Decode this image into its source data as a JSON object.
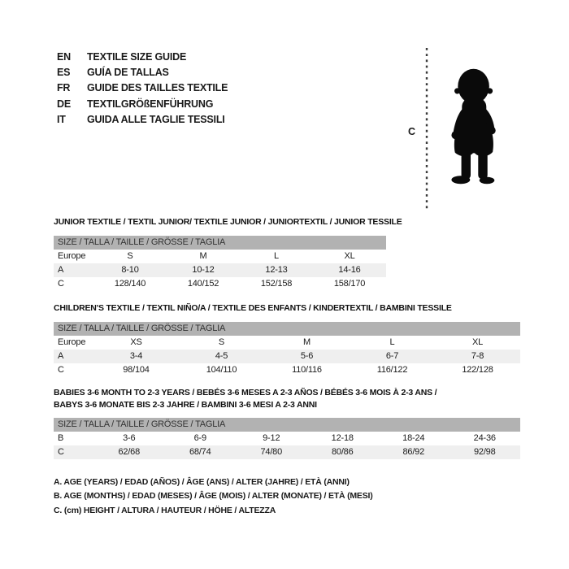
{
  "languages": [
    {
      "code": "EN",
      "label": "TEXTILE SIZE GUIDE"
    },
    {
      "code": "ES",
      "label": "GUÍA DE TALLAS"
    },
    {
      "code": "FR",
      "label": "GUIDE DES TAILLES TEXTILE"
    },
    {
      "code": "DE",
      "label": "TEXTILGRÖßENFÜHRUNG"
    },
    {
      "code": "IT",
      "label": "GUIDA ALLE TAGLIE TESSILI"
    }
  ],
  "figure": {
    "height_label": "C"
  },
  "sections": [
    {
      "title": "JUNIOR TEXTILE / TEXTIL JUNIOR/ TEXTILE JUNIOR / JUNIORTEXTIL / JUNIOR TESSILE",
      "table": {
        "header": "SIZE / TALLA / TAILLE / GRÖSSE / TAGLIA",
        "rows": [
          {
            "shaded": false,
            "cells": [
              "Europe",
              "S",
              "M",
              "L",
              "XL"
            ]
          },
          {
            "shaded": true,
            "cells": [
              "A",
              "8-10",
              "10-12",
              "12-13",
              "14-16"
            ]
          },
          {
            "shaded": false,
            "cells": [
              "C",
              "128/140",
              "140/152",
              "152/158",
              "158/170"
            ]
          }
        ]
      }
    },
    {
      "title": "CHILDREN'S TEXTILE / TEXTIL NIÑO/A / TEXTILE DES ENFANTS / KINDERTEXTIL / BAMBINI TESSILE",
      "table": {
        "header": "SIZE / TALLA / TAILLE / GRÖSSE / TAGLIA",
        "rows": [
          {
            "shaded": false,
            "cells": [
              "Europe",
              "XS",
              "S",
              "M",
              "L",
              "XL"
            ]
          },
          {
            "shaded": true,
            "cells": [
              "A",
              "3-4",
              "4-5",
              "5-6",
              "6-7",
              "7-8"
            ]
          },
          {
            "shaded": false,
            "cells": [
              "C",
              "98/104",
              "104/110",
              "110/116",
              "116/122",
              "122/128"
            ]
          }
        ]
      }
    },
    {
      "title": "BABIES 3-6 MONTH TO 2-3 YEARS / BEBÉS 3-6 MESES A 2-3 AÑOS / BÉBÉS 3-6 MOIS À 2-3 ANS /\nBABYS 3-6 MONATE BIS 2-3 JAHRE / BAMBINI 3-6 MESI A 2-3 ANNI",
      "table": {
        "header": "SIZE / TALLA / TAILLE / GRÖSSE / TAGLIA",
        "rows": [
          {
            "shaded": false,
            "cells": [
              "B",
              "3-6",
              "6-9",
              "9-12",
              "12-18",
              "18-24",
              "24-36"
            ]
          },
          {
            "shaded": true,
            "cells": [
              "C",
              "62/68",
              "68/74",
              "74/80",
              "80/86",
              "86/92",
              "92/98"
            ]
          }
        ]
      }
    }
  ],
  "notes": [
    "A. AGE (YEARS) / EDAD (AÑOS) / ÂGE (ANS) / ALTER (JAHRE) / ETÀ (ANNI)",
    "B. AGE (MONTHS) / EDAD (MESES) / ÂGE (MOIS) / ALTER (MONATE) / ETÀ (MESI)",
    "C. (cm) HEIGHT / ALTURA / HAUTEUR / HÖHE / ALTEZZA"
  ],
  "colors": {
    "table_header_bg": "#b2b2b2",
    "row_shaded_bg": "#efefef",
    "text": "#1a1a1a",
    "silhouette": "#0a0a0a"
  }
}
